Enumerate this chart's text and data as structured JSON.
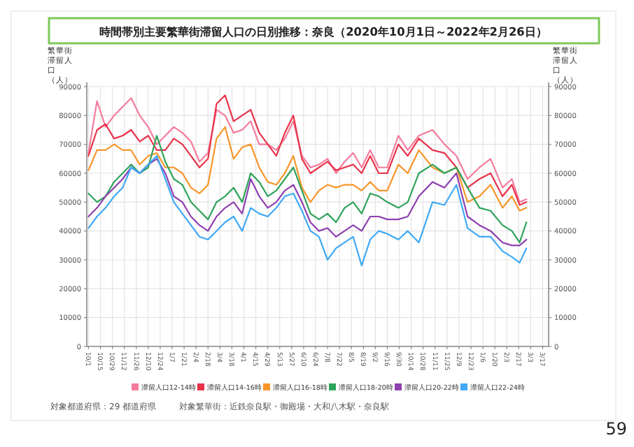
{
  "chart_data": {
    "type": "line",
    "title": "時間帯別主要繁華街滞留人口の日別推移：奈良（2020年10月1日～2022年2月26日）",
    "ylabel": "繁華街滞留人口（人）",
    "y2label": "繁華街滞留人口（人）",
    "x": [
      "2020-10-01",
      "2020-10-11",
      "2020-10-21",
      "2020-10-31",
      "2020-11-10",
      "2020-11-20",
      "2020-11-30",
      "2020-12-10",
      "2020-12-20",
      "2020-12-30",
      "2021-01-09",
      "2021-01-19",
      "2021-01-29",
      "2021-02-08",
      "2021-02-18",
      "2021-02-28",
      "2021-03-10",
      "2021-03-20",
      "2021-03-30",
      "2021-04-09",
      "2021-04-19",
      "2021-04-29",
      "2021-05-09",
      "2021-05-19",
      "2021-05-29",
      "2021-06-08",
      "2021-06-18",
      "2021-06-28",
      "2021-07-08",
      "2021-07-18",
      "2021-07-28",
      "2021-08-07",
      "2021-08-17",
      "2021-08-27",
      "2021-09-06",
      "2021-09-16",
      "2021-09-29",
      "2021-10-10",
      "2021-10-23",
      "2021-11-08",
      "2021-11-22",
      "2021-12-06",
      "2021-12-19",
      "2022-01-02",
      "2022-01-15",
      "2022-01-29",
      "2022-02-09",
      "2022-02-18",
      "2022-02-26"
    ],
    "series": [
      {
        "name": "滞留人口12-14時",
        "color": "#f47c9c",
        "values": [
          67000,
          85000,
          76000,
          80000,
          83000,
          86000,
          80000,
          76000,
          70000,
          73000,
          76000,
          74000,
          71000,
          64000,
          67000,
          82000,
          80000,
          74000,
          75000,
          78000,
          70000,
          70000,
          68000,
          72000,
          78000,
          66000,
          62000,
          63000,
          65000,
          60000,
          64000,
          67000,
          62000,
          68000,
          62000,
          62000,
          73000,
          68000,
          73000,
          75000,
          70000,
          66000,
          58000,
          62000,
          65000,
          55000,
          58000,
          50000,
          51000
        ]
      },
      {
        "name": "滞留人口14-16時",
        "color": "#e8334a",
        "values": [
          66000,
          75000,
          77000,
          72000,
          73000,
          75000,
          71000,
          73000,
          68000,
          68000,
          72000,
          70000,
          66000,
          62000,
          65000,
          84000,
          87000,
          78000,
          80000,
          82000,
          74000,
          70000,
          66000,
          74000,
          80000,
          65000,
          60000,
          62000,
          64000,
          61000,
          62000,
          63000,
          60000,
          66000,
          60000,
          60000,
          70000,
          66000,
          72000,
          68000,
          67000,
          62000,
          55000,
          58000,
          60000,
          52000,
          56000,
          49000,
          50000
        ]
      },
      {
        "name": "滞留人口16-18時",
        "color": "#f7962a",
        "values": [
          61000,
          68000,
          68000,
          70000,
          68000,
          68000,
          63000,
          66000,
          67000,
          62000,
          62000,
          60000,
          55000,
          53000,
          56000,
          72000,
          76000,
          65000,
          69000,
          70000,
          62000,
          57000,
          56000,
          60000,
          66000,
          55000,
          50000,
          54000,
          56000,
          55000,
          56000,
          56000,
          54000,
          57000,
          54000,
          54000,
          63000,
          60000,
          68000,
          62000,
          60000,
          62000,
          50000,
          52000,
          56000,
          48000,
          52000,
          47000,
          48000
        ]
      },
      {
        "name": "滞留人口18-20時",
        "color": "#2ea35a",
        "values": [
          53000,
          50000,
          52000,
          57000,
          60000,
          63000,
          60000,
          62000,
          73000,
          64000,
          58000,
          56000,
          50000,
          47000,
          44000,
          50000,
          52000,
          55000,
          50000,
          60000,
          57000,
          52000,
          54000,
          58000,
          62000,
          54000,
          46000,
          44000,
          46000,
          43000,
          48000,
          50000,
          46000,
          53000,
          52000,
          50000,
          48000,
          50000,
          60000,
          63000,
          60000,
          62000,
          55000,
          48000,
          47000,
          42000,
          40000,
          36000,
          43000
        ]
      },
      {
        "name": "滞留人口20-22時",
        "color": "#8e3fb0",
        "values": [
          45000,
          48000,
          52000,
          55000,
          58000,
          62000,
          60000,
          63000,
          65000,
          60000,
          52000,
          50000,
          45000,
          42000,
          40000,
          45000,
          48000,
          50000,
          46000,
          58000,
          52000,
          48000,
          50000,
          54000,
          56000,
          50000,
          43000,
          40000,
          41000,
          38000,
          40000,
          42000,
          40000,
          45000,
          45000,
          44000,
          44000,
          45000,
          52000,
          57000,
          55000,
          60000,
          45000,
          42000,
          40000,
          36000,
          35000,
          35000,
          37000
        ]
      },
      {
        "name": "滞留人口22-24時",
        "color": "#3fa9f5",
        "values": [
          41000,
          45000,
          48000,
          52000,
          55000,
          62000,
          60000,
          63000,
          66000,
          58000,
          50000,
          46000,
          42000,
          38000,
          37000,
          40000,
          43000,
          45000,
          40000,
          48000,
          46000,
          45000,
          48000,
          52000,
          53000,
          47000,
          40000,
          38000,
          30000,
          34000,
          36000,
          38000,
          28000,
          37000,
          40000,
          39000,
          37000,
          40000,
          36000,
          50000,
          49000,
          56000,
          41000,
          38000,
          38000,
          33000,
          31000,
          29000,
          34000
        ]
      }
    ],
    "xlim": [
      "2020-09-29",
      "2022-03-24"
    ],
    "xticks": [
      {
        "value": "2020-10-01",
        "label": "10/1"
      },
      {
        "value": "2020-10-15",
        "label": "10/15"
      },
      {
        "value": "2020-10-29",
        "label": "10/29"
      },
      {
        "value": "2020-11-12",
        "label": "11/12"
      },
      {
        "value": "2020-11-26",
        "label": "11/26"
      },
      {
        "value": "2020-12-10",
        "label": "12/10"
      },
      {
        "value": "2020-12-24",
        "label": "12/24"
      },
      {
        "value": "2021-01-07",
        "label": "1/7"
      },
      {
        "value": "2021-01-21",
        "label": "1/21"
      },
      {
        "value": "2021-02-04",
        "label": "2/4"
      },
      {
        "value": "2021-02-18",
        "label": "2/18"
      },
      {
        "value": "2021-03-04",
        "label": "3/4"
      },
      {
        "value": "2021-03-18",
        "label": "3/18"
      },
      {
        "value": "2021-04-01",
        "label": "4/1"
      },
      {
        "value": "2021-04-15",
        "label": "4/15"
      },
      {
        "value": "2021-04-29",
        "label": "4/29"
      },
      {
        "value": "2021-05-13",
        "label": "5/13"
      },
      {
        "value": "2021-05-27",
        "label": "5/27"
      },
      {
        "value": "2021-06-10",
        "label": "6/10"
      },
      {
        "value": "2021-06-24",
        "label": "6/24"
      },
      {
        "value": "2021-07-08",
        "label": "7/8"
      },
      {
        "value": "2021-07-22",
        "label": "7/22"
      },
      {
        "value": "2021-08-05",
        "label": "8/5"
      },
      {
        "value": "2021-08-19",
        "label": "8/19"
      },
      {
        "value": "2021-09-02",
        "label": "9/2"
      },
      {
        "value": "2021-09-16",
        "label": "9/16"
      },
      {
        "value": "2021-09-30",
        "label": "9/30"
      },
      {
        "value": "2021-10-14",
        "label": "10/14"
      },
      {
        "value": "2021-10-28",
        "label": "10/28"
      },
      {
        "value": "2021-11-11",
        "label": "11/11"
      },
      {
        "value": "2021-11-25",
        "label": "11/25"
      },
      {
        "value": "2021-12-09",
        "label": "12/9"
      },
      {
        "value": "2021-12-23",
        "label": "12/23"
      },
      {
        "value": "2022-01-06",
        "label": "1/6"
      },
      {
        "value": "2022-01-20",
        "label": "1/20"
      },
      {
        "value": "2022-02-03",
        "label": "2/3"
      },
      {
        "value": "2022-02-17",
        "label": "2/17"
      },
      {
        "value": "2022-03-03",
        "label": "3/3"
      },
      {
        "value": "2022-03-17",
        "label": "3/17"
      }
    ],
    "ylim": [
      0,
      90000
    ],
    "yticks": [
      0,
      10000,
      20000,
      30000,
      40000,
      50000,
      60000,
      70000,
      80000,
      90000
    ],
    "y2lim": [
      0,
      90000
    ],
    "y2ticks": [
      0,
      10000,
      20000,
      30000,
      40000,
      50000,
      60000,
      70000,
      80000,
      90000
    ],
    "grid": true,
    "legend": "bottom",
    "marker": "none",
    "line_style": "solid",
    "annotations": [
      "対象都道府県：29 都道府県",
      "対象繁華街：近鉄奈良駅・御殿場・大和八木駅・奈良駅",
      "59"
    ]
  }
}
